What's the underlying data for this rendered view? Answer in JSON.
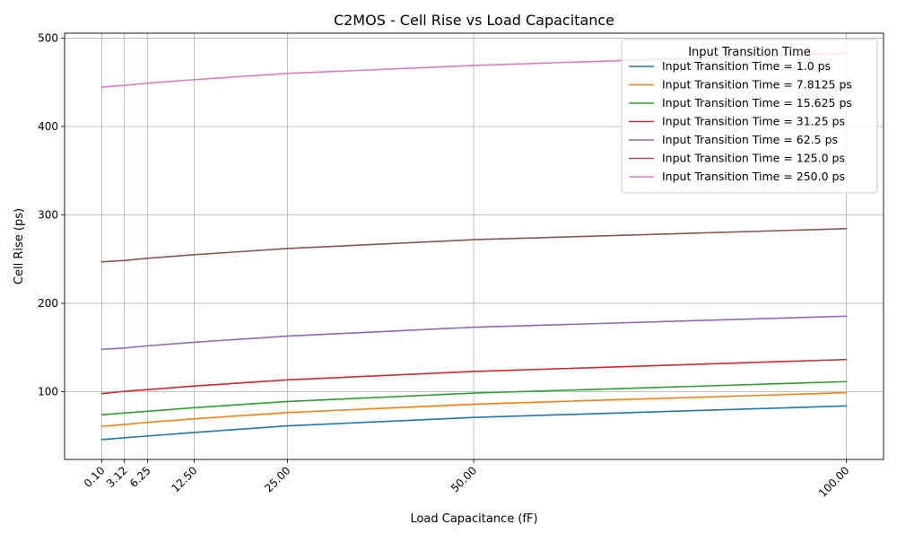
{
  "chart_data": {
    "type": "line",
    "title": "C2MOS - Cell Rise vs Load Capacitance",
    "xlabel": "Load Capacitance (fF)",
    "ylabel": "Cell Rise (ps)",
    "x": [
      0.1,
      3.125,
      6.25,
      12.5,
      25.0,
      50.0,
      100.0
    ],
    "x_tick_labels": [
      "0.10",
      "3.12",
      "6.25",
      "12.50",
      "25.00",
      "50.00",
      "100.00"
    ],
    "xlim": [
      -4.9,
      105.0
    ],
    "ylim": [
      23.5,
      505.5
    ],
    "y_ticks": [
      100,
      200,
      300,
      400,
      500
    ],
    "y_tick_labels": [
      "100",
      "200",
      "300",
      "400",
      "500"
    ],
    "grid": true,
    "legend": {
      "title": "Input Transition Time",
      "placement": "top-right"
    },
    "series": [
      {
        "name": "Input Transition Time = 1.0 ps",
        "color": "#1f77b4",
        "values": [
          46,
          48,
          50,
          54,
          61.5,
          71,
          84
        ]
      },
      {
        "name": "Input Transition Time = 7.8125 ps",
        "color": "#ff7f0e",
        "values": [
          61,
          63,
          65.5,
          69.5,
          76.5,
          86,
          99
        ]
      },
      {
        "name": "Input Transition Time = 15.625 ps",
        "color": "#2ca02c",
        "values": [
          74,
          76,
          78,
          82,
          89,
          98.5,
          111.5
        ]
      },
      {
        "name": "Input Transition Time = 31.25 ps",
        "color": "#d62728",
        "values": [
          98,
          100.5,
          102.5,
          106.5,
          113.5,
          123,
          136.5
        ]
      },
      {
        "name": "Input Transition Time = 62.5 ps",
        "color": "#9467bd",
        "values": [
          148,
          149.5,
          152,
          156,
          163,
          173,
          185.5
        ]
      },
      {
        "name": "Input Transition Time = 125.0 ps",
        "color": "#8c564b",
        "values": [
          247,
          248.5,
          251,
          255,
          262,
          272,
          284.5
        ]
      },
      {
        "name": "Input Transition Time = 250.0 ps",
        "color": "#e377c2",
        "values": [
          444.5,
          446.5,
          449,
          453,
          460,
          469,
          483
        ]
      }
    ]
  }
}
